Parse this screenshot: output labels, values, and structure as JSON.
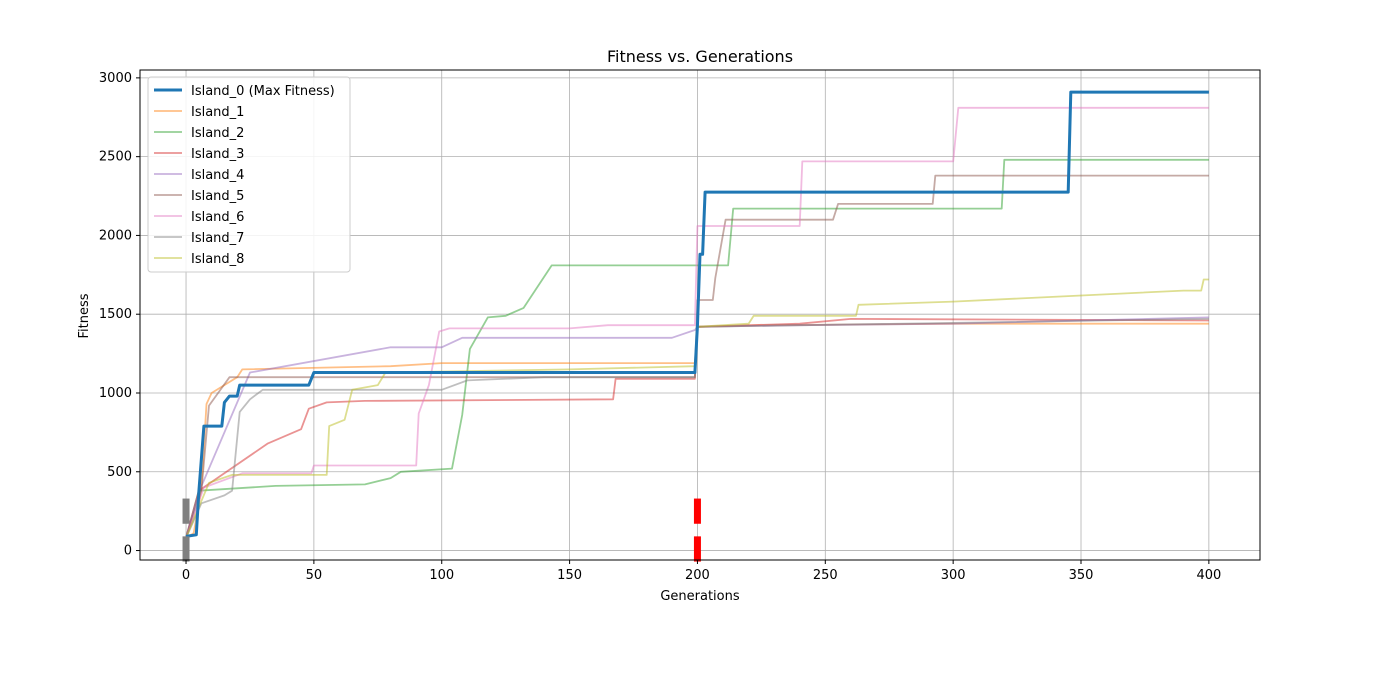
{
  "chart_data": {
    "type": "line",
    "title": "Fitness vs. Generations",
    "xlabel": "Generations",
    "ylabel": "Fitness",
    "xlim": [
      -18,
      420
    ],
    "ylim": [
      -60,
      3050
    ],
    "xticks": [
      0,
      50,
      100,
      150,
      200,
      250,
      300,
      350,
      400
    ],
    "yticks": [
      0,
      500,
      1000,
      1500,
      2000,
      2500,
      3000
    ],
    "grid": true,
    "legend_position": "upper-left",
    "series": [
      {
        "name": "Island_0 (Max Fitness)",
        "color": "#1f77b4",
        "highlight": true,
        "points": [
          [
            0,
            90
          ],
          [
            4,
            100
          ],
          [
            5,
            370
          ],
          [
            7,
            790
          ],
          [
            14,
            790
          ],
          [
            15,
            940
          ],
          [
            17,
            980
          ],
          [
            20,
            980
          ],
          [
            21,
            1050
          ],
          [
            48,
            1050
          ],
          [
            50,
            1130
          ],
          [
            199,
            1130
          ],
          [
            200,
            1420
          ],
          [
            201,
            1880
          ],
          [
            202,
            1880
          ],
          [
            203,
            2275
          ],
          [
            345,
            2275
          ],
          [
            346,
            2910
          ],
          [
            400,
            2910
          ]
        ]
      },
      {
        "name": "Island_1",
        "color": "#ff7f0e",
        "points": [
          [
            0,
            80
          ],
          [
            3,
            110
          ],
          [
            6,
            390
          ],
          [
            8,
            930
          ],
          [
            10,
            1000
          ],
          [
            20,
            1100
          ],
          [
            22,
            1150
          ],
          [
            80,
            1170
          ],
          [
            100,
            1190
          ],
          [
            199,
            1190
          ],
          [
            200,
            1420
          ],
          [
            230,
            1430
          ],
          [
            300,
            1440
          ],
          [
            400,
            1440
          ]
        ]
      },
      {
        "name": "Island_2",
        "color": "#2ca02c",
        "points": [
          [
            0,
            80
          ],
          [
            5,
            380
          ],
          [
            35,
            410
          ],
          [
            70,
            420
          ],
          [
            80,
            460
          ],
          [
            84,
            500
          ],
          [
            104,
            520
          ],
          [
            108,
            860
          ],
          [
            111,
            1280
          ],
          [
            118,
            1480
          ],
          [
            125,
            1490
          ],
          [
            132,
            1540
          ],
          [
            143,
            1810
          ],
          [
            212,
            1810
          ],
          [
            214,
            2170
          ],
          [
            319,
            2170
          ],
          [
            320,
            2480
          ],
          [
            400,
            2480
          ]
        ]
      },
      {
        "name": "Island_3",
        "color": "#d62728",
        "points": [
          [
            0,
            80
          ],
          [
            5,
            380
          ],
          [
            32,
            680
          ],
          [
            45,
            770
          ],
          [
            48,
            900
          ],
          [
            55,
            940
          ],
          [
            70,
            950
          ],
          [
            167,
            960
          ],
          [
            168,
            1090
          ],
          [
            199,
            1090
          ],
          [
            200,
            1420
          ],
          [
            240,
            1440
          ],
          [
            260,
            1470
          ],
          [
            400,
            1460
          ]
        ]
      },
      {
        "name": "Island_4",
        "color": "#9467bd",
        "points": [
          [
            0,
            80
          ],
          [
            5,
            370
          ],
          [
            25,
            1130
          ],
          [
            80,
            1290
          ],
          [
            100,
            1290
          ],
          [
            108,
            1350
          ],
          [
            190,
            1350
          ],
          [
            199,
            1400
          ],
          [
            200,
            1420
          ],
          [
            240,
            1430
          ],
          [
            300,
            1440
          ],
          [
            400,
            1480
          ]
        ]
      },
      {
        "name": "Island_5",
        "color": "#8c564b",
        "points": [
          [
            0,
            80
          ],
          [
            6,
            380
          ],
          [
            9,
            920
          ],
          [
            17,
            1100
          ],
          [
            60,
            1100
          ],
          [
            199,
            1100
          ],
          [
            200,
            1590
          ],
          [
            206,
            1590
          ],
          [
            207,
            1730
          ],
          [
            211,
            2100
          ],
          [
            253,
            2100
          ],
          [
            255,
            2200
          ],
          [
            292,
            2200
          ],
          [
            293,
            2380
          ],
          [
            400,
            2380
          ]
        ]
      },
      {
        "name": "Island_6",
        "color": "#e377c2",
        "points": [
          [
            0,
            80
          ],
          [
            7,
            400
          ],
          [
            22,
            490
          ],
          [
            49,
            490
          ],
          [
            50,
            540
          ],
          [
            90,
            540
          ],
          [
            91,
            870
          ],
          [
            95,
            1050
          ],
          [
            99,
            1390
          ],
          [
            103,
            1410
          ],
          [
            150,
            1410
          ],
          [
            165,
            1430
          ],
          [
            199,
            1430
          ],
          [
            200,
            2060
          ],
          [
            240,
            2060
          ],
          [
            241,
            2470
          ],
          [
            300,
            2470
          ],
          [
            302,
            2810
          ],
          [
            400,
            2810
          ]
        ]
      },
      {
        "name": "Island_7",
        "color": "#7f7f7f",
        "points": [
          [
            0,
            80
          ],
          [
            6,
            300
          ],
          [
            15,
            350
          ],
          [
            18,
            380
          ],
          [
            21,
            880
          ],
          [
            25,
            960
          ],
          [
            30,
            1020
          ],
          [
            100,
            1020
          ],
          [
            110,
            1080
          ],
          [
            140,
            1100
          ],
          [
            199,
            1100
          ],
          [
            200,
            1420
          ],
          [
            400,
            1470
          ]
        ]
      },
      {
        "name": "Island_8",
        "color": "#bcbd22",
        "points": [
          [
            0,
            80
          ],
          [
            9,
            430
          ],
          [
            18,
            480
          ],
          [
            55,
            480
          ],
          [
            56,
            790
          ],
          [
            62,
            830
          ],
          [
            65,
            1020
          ],
          [
            75,
            1050
          ],
          [
            78,
            1130
          ],
          [
            150,
            1150
          ],
          [
            199,
            1170
          ],
          [
            200,
            1420
          ],
          [
            220,
            1440
          ],
          [
            222,
            1490
          ],
          [
            262,
            1490
          ],
          [
            263,
            1560
          ],
          [
            300,
            1580
          ],
          [
            390,
            1650
          ],
          [
            397,
            1650
          ],
          [
            398,
            1720
          ],
          [
            400,
            1720
          ]
        ]
      }
    ],
    "markers": [
      {
        "x": 0,
        "y_range": [
          -70,
          90
        ],
        "color": "#808080"
      },
      {
        "x": 0,
        "y_range": [
          170,
          330
        ],
        "color": "#808080"
      },
      {
        "x": 200,
        "y_range": [
          -70,
          90
        ],
        "color": "#ff0000"
      },
      {
        "x": 200,
        "y_range": [
          170,
          330
        ],
        "color": "#ff0000"
      }
    ]
  }
}
